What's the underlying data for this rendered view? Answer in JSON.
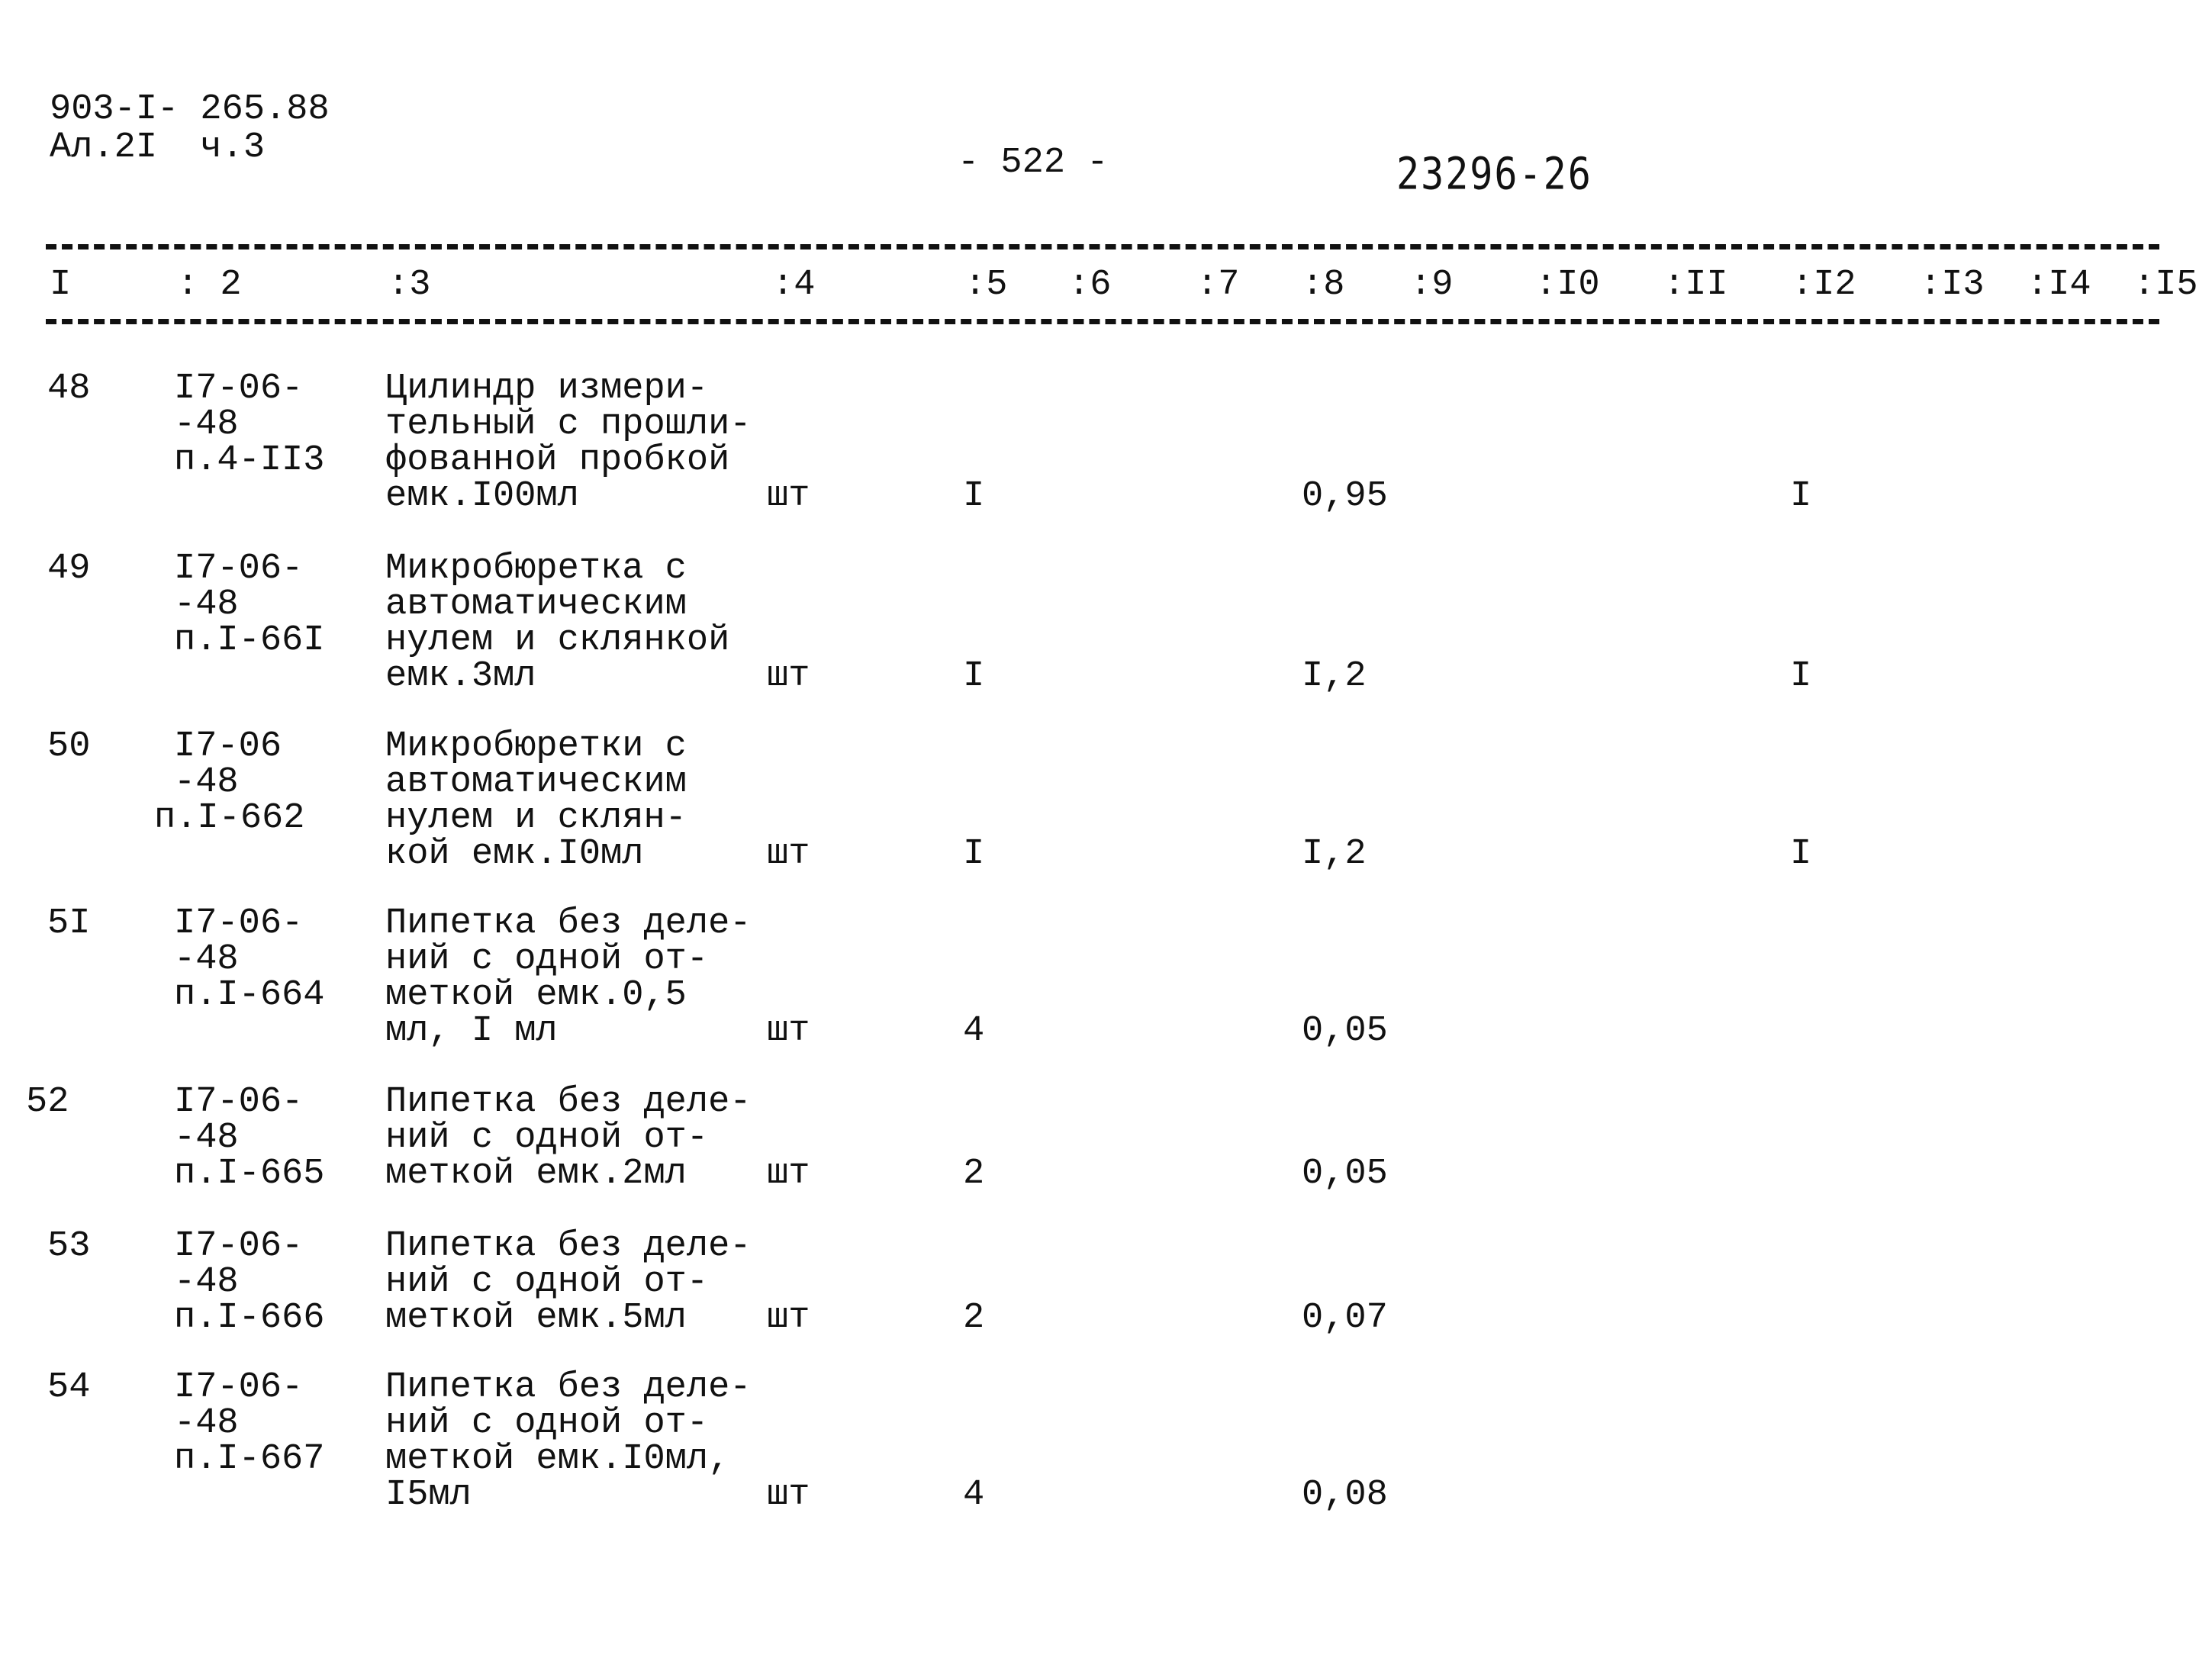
{
  "header": {
    "doc_code": "903-I- 265.88",
    "sheet": "Ал.2I  ч.3",
    "page_number": "- 522 -",
    "handwritten_number": "23296-26"
  },
  "columns": [
    "I",
    ": 2",
    ":3",
    ":4",
    ":5",
    ":6",
    ":7",
    ":8",
    ":9",
    ":I0",
    ":II",
    ":I2",
    ":I3",
    ":I4",
    ":I5"
  ],
  "rows": [
    {
      "num": "48",
      "code": [
        "I7-06-",
        "-48",
        "п.4-II3"
      ],
      "desc": [
        "Цилиндр измери-",
        "тельный с прошли-",
        "фованной пробкой",
        "емк.I00мл"
      ],
      "unit": "шт",
      "c5": "I",
      "c8": "0,95",
      "c12": "I"
    },
    {
      "num": "49",
      "code": [
        "I7-06-",
        "-48",
        "п.I-66I"
      ],
      "desc": [
        "Микробюретка с",
        "автоматическим",
        "нулем и склянкой",
        "емк.3мл"
      ],
      "unit": "шт",
      "c5": "I",
      "c8": "I,2",
      "c12": "I"
    },
    {
      "num": "50",
      "code": [
        "I7-06",
        "-48",
        "п.I-662"
      ],
      "desc": [
        "Микробюретки с",
        "автоматическим",
        "нулем и склян-",
        "кой емк.I0мл"
      ],
      "unit": "шт",
      "c5": "I",
      "c8": "I,2",
      "c12": "I"
    },
    {
      "num": "5I",
      "code": [
        "I7-06-",
        "-48",
        "п.I-664"
      ],
      "desc": [
        "Пипетка без деле-",
        "ний с одной от-",
        "меткой емк.0,5",
        "мл, I мл"
      ],
      "unit": "шт",
      "c5": "4",
      "c8": "0,05",
      "c12": ""
    },
    {
      "num": "52",
      "code": [
        "I7-06-",
        "-48",
        "п.I-665"
      ],
      "desc": [
        "Пипетка без деле-",
        "ний с одной от-",
        "меткой емк.2мл"
      ],
      "unit": "шт",
      "c5": "2",
      "c8": "0,05",
      "c12": ""
    },
    {
      "num": "53",
      "code": [
        "I7-06-",
        "-48",
        "п.I-666"
      ],
      "desc": [
        "Пипетка без деле-",
        "ний с одной от-",
        "меткой емк.5мл"
      ],
      "unit": "шт",
      "c5": "2",
      "c8": "0,07",
      "c12": ""
    },
    {
      "num": "54",
      "code": [
        "I7-06-",
        "-48",
        "п.I-667"
      ],
      "desc": [
        "Пипетка без деле-",
        "ний с одной от-",
        "меткой емк.I0мл,",
        "I5мл"
      ],
      "unit": "шт",
      "c5": "4",
      "c8": "0,08",
      "c12": ""
    }
  ]
}
